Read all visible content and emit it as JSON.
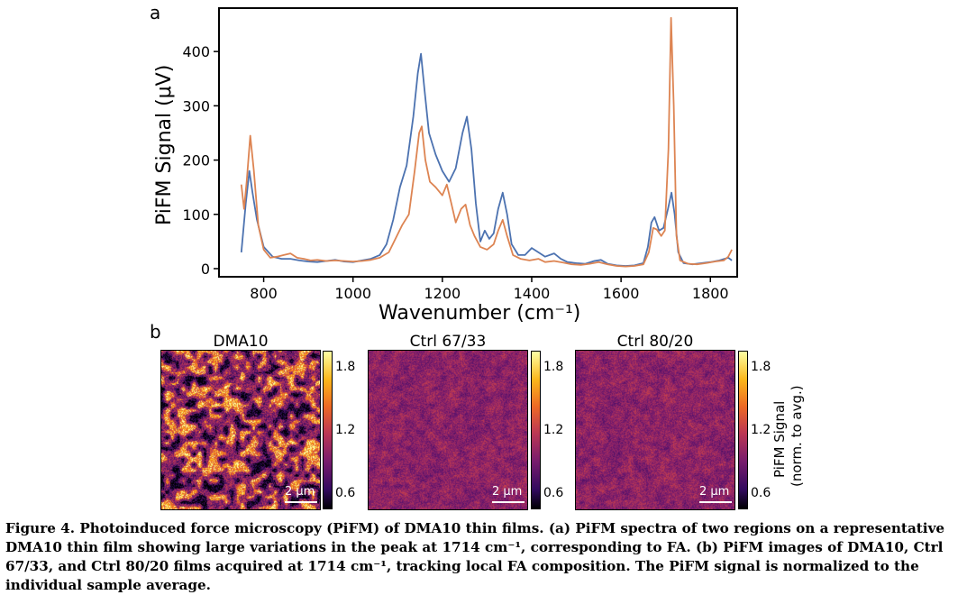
{
  "panel_a_letter": "a",
  "panel_b_letter": "b",
  "chart_data": {
    "type": "line",
    "xlabel": "Wavenumber (cm⁻¹)",
    "ylabel": "PiFM Signal (μV)",
    "xlim": [
      700,
      1860
    ],
    "ylim": [
      -15,
      480
    ],
    "x_ticks": [
      800,
      1000,
      1200,
      1400,
      1600,
      1800
    ],
    "y_ticks": [
      0,
      100,
      200,
      300,
      400
    ],
    "series": [
      {
        "color": "#4c72b0",
        "points": [
          [
            750,
            30
          ],
          [
            760,
            120
          ],
          [
            768,
            180
          ],
          [
            775,
            140
          ],
          [
            785,
            90
          ],
          [
            800,
            40
          ],
          [
            820,
            22
          ],
          [
            840,
            18
          ],
          [
            860,
            18
          ],
          [
            880,
            15
          ],
          [
            900,
            13
          ],
          [
            920,
            12
          ],
          [
            940,
            14
          ],
          [
            960,
            16
          ],
          [
            980,
            13
          ],
          [
            1000,
            12
          ],
          [
            1020,
            15
          ],
          [
            1040,
            18
          ],
          [
            1060,
            25
          ],
          [
            1075,
            45
          ],
          [
            1090,
            90
          ],
          [
            1105,
            150
          ],
          [
            1120,
            190
          ],
          [
            1135,
            280
          ],
          [
            1145,
            360
          ],
          [
            1152,
            396
          ],
          [
            1160,
            330
          ],
          [
            1170,
            250
          ],
          [
            1185,
            210
          ],
          [
            1200,
            180
          ],
          [
            1215,
            160
          ],
          [
            1230,
            185
          ],
          [
            1245,
            250
          ],
          [
            1255,
            280
          ],
          [
            1265,
            220
          ],
          [
            1275,
            120
          ],
          [
            1285,
            50
          ],
          [
            1295,
            70
          ],
          [
            1305,
            55
          ],
          [
            1315,
            65
          ],
          [
            1325,
            110
          ],
          [
            1335,
            140
          ],
          [
            1345,
            100
          ],
          [
            1355,
            45
          ],
          [
            1370,
            25
          ],
          [
            1385,
            25
          ],
          [
            1400,
            38
          ],
          [
            1415,
            30
          ],
          [
            1430,
            22
          ],
          [
            1450,
            28
          ],
          [
            1465,
            18
          ],
          [
            1480,
            12
          ],
          [
            1500,
            10
          ],
          [
            1520,
            9
          ],
          [
            1540,
            14
          ],
          [
            1555,
            16
          ],
          [
            1570,
            9
          ],
          [
            1590,
            6
          ],
          [
            1610,
            5
          ],
          [
            1630,
            6
          ],
          [
            1650,
            10
          ],
          [
            1660,
            40
          ],
          [
            1668,
            85
          ],
          [
            1675,
            95
          ],
          [
            1685,
            70
          ],
          [
            1695,
            75
          ],
          [
            1705,
            110
          ],
          [
            1713,
            140
          ],
          [
            1720,
            100
          ],
          [
            1728,
            30
          ],
          [
            1740,
            10
          ],
          [
            1760,
            8
          ],
          [
            1780,
            10
          ],
          [
            1800,
            12
          ],
          [
            1820,
            15
          ],
          [
            1840,
            20
          ],
          [
            1848,
            15
          ]
        ]
      },
      {
        "color": "#dd8452",
        "points": [
          [
            750,
            155
          ],
          [
            756,
            110
          ],
          [
            762,
            160
          ],
          [
            770,
            245
          ],
          [
            778,
            180
          ],
          [
            788,
            80
          ],
          [
            800,
            35
          ],
          [
            815,
            20
          ],
          [
            830,
            22
          ],
          [
            845,
            25
          ],
          [
            860,
            28
          ],
          [
            875,
            20
          ],
          [
            890,
            18
          ],
          [
            905,
            15
          ],
          [
            920,
            16
          ],
          [
            940,
            14
          ],
          [
            960,
            15
          ],
          [
            980,
            14
          ],
          [
            1000,
            13
          ],
          [
            1020,
            14
          ],
          [
            1040,
            16
          ],
          [
            1060,
            20
          ],
          [
            1080,
            30
          ],
          [
            1095,
            55
          ],
          [
            1110,
            80
          ],
          [
            1125,
            100
          ],
          [
            1138,
            180
          ],
          [
            1148,
            250
          ],
          [
            1154,
            262
          ],
          [
            1162,
            200
          ],
          [
            1172,
            160
          ],
          [
            1185,
            150
          ],
          [
            1200,
            135
          ],
          [
            1210,
            155
          ],
          [
            1220,
            120
          ],
          [
            1230,
            85
          ],
          [
            1242,
            110
          ],
          [
            1252,
            118
          ],
          [
            1262,
            80
          ],
          [
            1272,
            60
          ],
          [
            1285,
            40
          ],
          [
            1300,
            35
          ],
          [
            1315,
            45
          ],
          [
            1325,
            70
          ],
          [
            1335,
            90
          ],
          [
            1345,
            60
          ],
          [
            1358,
            25
          ],
          [
            1375,
            18
          ],
          [
            1395,
            15
          ],
          [
            1415,
            18
          ],
          [
            1430,
            12
          ],
          [
            1450,
            14
          ],
          [
            1470,
            11
          ],
          [
            1490,
            8
          ],
          [
            1510,
            7
          ],
          [
            1530,
            9
          ],
          [
            1550,
            12
          ],
          [
            1570,
            8
          ],
          [
            1590,
            5
          ],
          [
            1610,
            4
          ],
          [
            1630,
            5
          ],
          [
            1650,
            8
          ],
          [
            1662,
            30
          ],
          [
            1672,
            75
          ],
          [
            1680,
            72
          ],
          [
            1690,
            60
          ],
          [
            1698,
            70
          ],
          [
            1706,
            220
          ],
          [
            1712,
            462
          ],
          [
            1718,
            300
          ],
          [
            1724,
            60
          ],
          [
            1732,
            15
          ],
          [
            1750,
            9
          ],
          [
            1770,
            8
          ],
          [
            1790,
            10
          ],
          [
            1810,
            13
          ],
          [
            1830,
            15
          ],
          [
            1840,
            22
          ],
          [
            1848,
            35
          ]
        ]
      }
    ]
  },
  "images": [
    {
      "title": "DMA10",
      "scalebar": "2 μm",
      "contrast": "high"
    },
    {
      "title": "Ctrl 67/33",
      "scalebar": "2 μm",
      "contrast": "low"
    },
    {
      "title": "Ctrl 80/20",
      "scalebar": "2 μm",
      "contrast": "low"
    }
  ],
  "colorbar_ticks": [
    "1.8",
    "1.2",
    "0.6"
  ],
  "colorbar_label_line1": "PiFM Signal",
  "colorbar_label_line2": "(norm. to avg.)",
  "caption": {
    "prefix": "Figure 4. ",
    "text": "Photoinduced force microscopy (PiFM) of DMA10 thin films. (a) PiFM spectra of two regions on a representative DMA10 thin film showing large variations in the peak at 1714 cm⁻¹, corresponding to FA. (b) PiFM images of DMA10, Ctrl 67/33, and Ctrl 80/20 films acquired at 1714 cm⁻¹, tracking local FA composition. The PiFM signal is normalized to the individual sample average."
  }
}
